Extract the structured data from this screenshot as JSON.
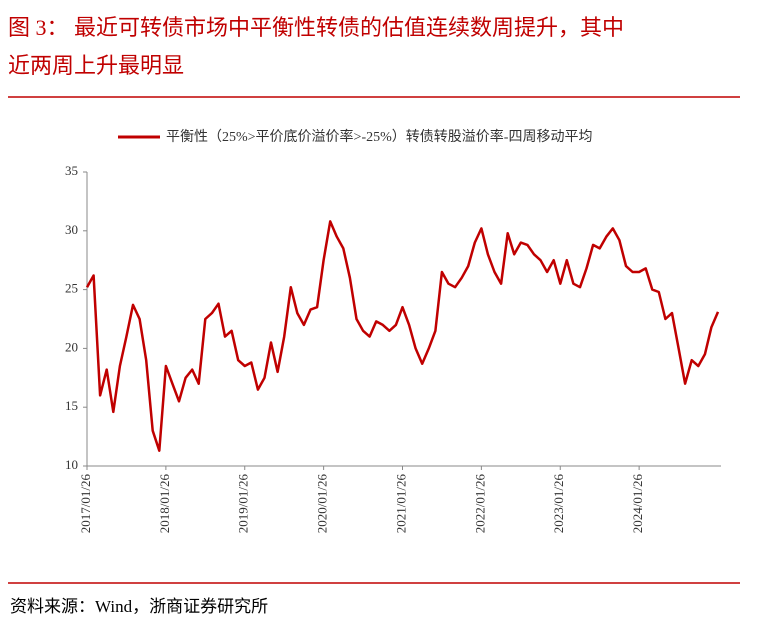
{
  "chart_data": {
    "type": "line",
    "title": [
      "图 3：  最近可转债市场中平衡性转债的估值连续数周提升，其中",
      "近两周上升最明显"
    ],
    "source": "资料来源：Wind，浙商证券研究所",
    "categories": [
      "2017/01/26",
      null,
      null,
      null,
      null,
      null,
      null,
      null,
      null,
      null,
      null,
      null,
      "2018/01/26",
      null,
      null,
      null,
      null,
      null,
      null,
      null,
      null,
      null,
      null,
      null,
      "2019/01/26",
      null,
      null,
      null,
      null,
      null,
      null,
      null,
      null,
      null,
      null,
      null,
      "2020/01/26",
      null,
      null,
      null,
      null,
      null,
      null,
      null,
      null,
      null,
      null,
      null,
      "2021/01/26",
      null,
      null,
      null,
      null,
      null,
      null,
      null,
      null,
      null,
      null,
      null,
      "2022/01/26",
      null,
      null,
      null,
      null,
      null,
      null,
      null,
      null,
      null,
      null,
      null,
      "2023/01/26",
      null,
      null,
      null,
      null,
      null,
      null,
      null,
      null,
      null,
      null,
      null,
      "2024/01/26",
      null,
      null,
      null,
      null,
      null,
      null,
      null,
      null,
      null,
      null,
      null,
      null
    ],
    "series": [
      {
        "name": "平衡性（25%>平价底价溢价率>-25%）转债转股溢价率-四周移动平均",
        "color": "#c00000",
        "values": [
          25.2,
          26.2,
          16,
          18.2,
          14.6,
          18.5,
          21,
          23.7,
          22.5,
          19,
          13,
          11.3,
          18.5,
          17,
          15.5,
          17.5,
          18.2,
          17,
          22.5,
          23,
          23.8,
          21,
          21.5,
          19,
          18.5,
          18.8,
          16.5,
          17.5,
          20.5,
          18,
          21,
          25.2,
          23,
          22,
          23.3,
          23.5,
          27.5,
          30.8,
          29.5,
          28.5,
          26,
          22.5,
          21.5,
          21,
          22.3,
          22,
          21.5,
          22,
          23.5,
          22,
          20,
          18.7,
          20,
          21.5,
          26.5,
          25.5,
          25.2,
          26,
          27,
          29,
          30.2,
          28,
          26.5,
          25.5,
          29.8,
          28,
          29,
          28.8,
          28,
          27.5,
          26.5,
          27.5,
          25.5,
          27.5,
          25.5,
          25.2,
          26.8,
          28.8,
          28.5,
          29.5,
          30.2,
          29.2,
          27,
          26.5,
          26.5,
          26.8,
          25,
          24.8,
          22.5,
          23,
          20,
          17,
          19,
          18.5,
          19.5,
          21.8,
          23.1
        ]
      }
    ],
    "ylim": [
      10,
      35
    ],
    "yticks": [
      10,
      15,
      20,
      25,
      30,
      35
    ]
  }
}
